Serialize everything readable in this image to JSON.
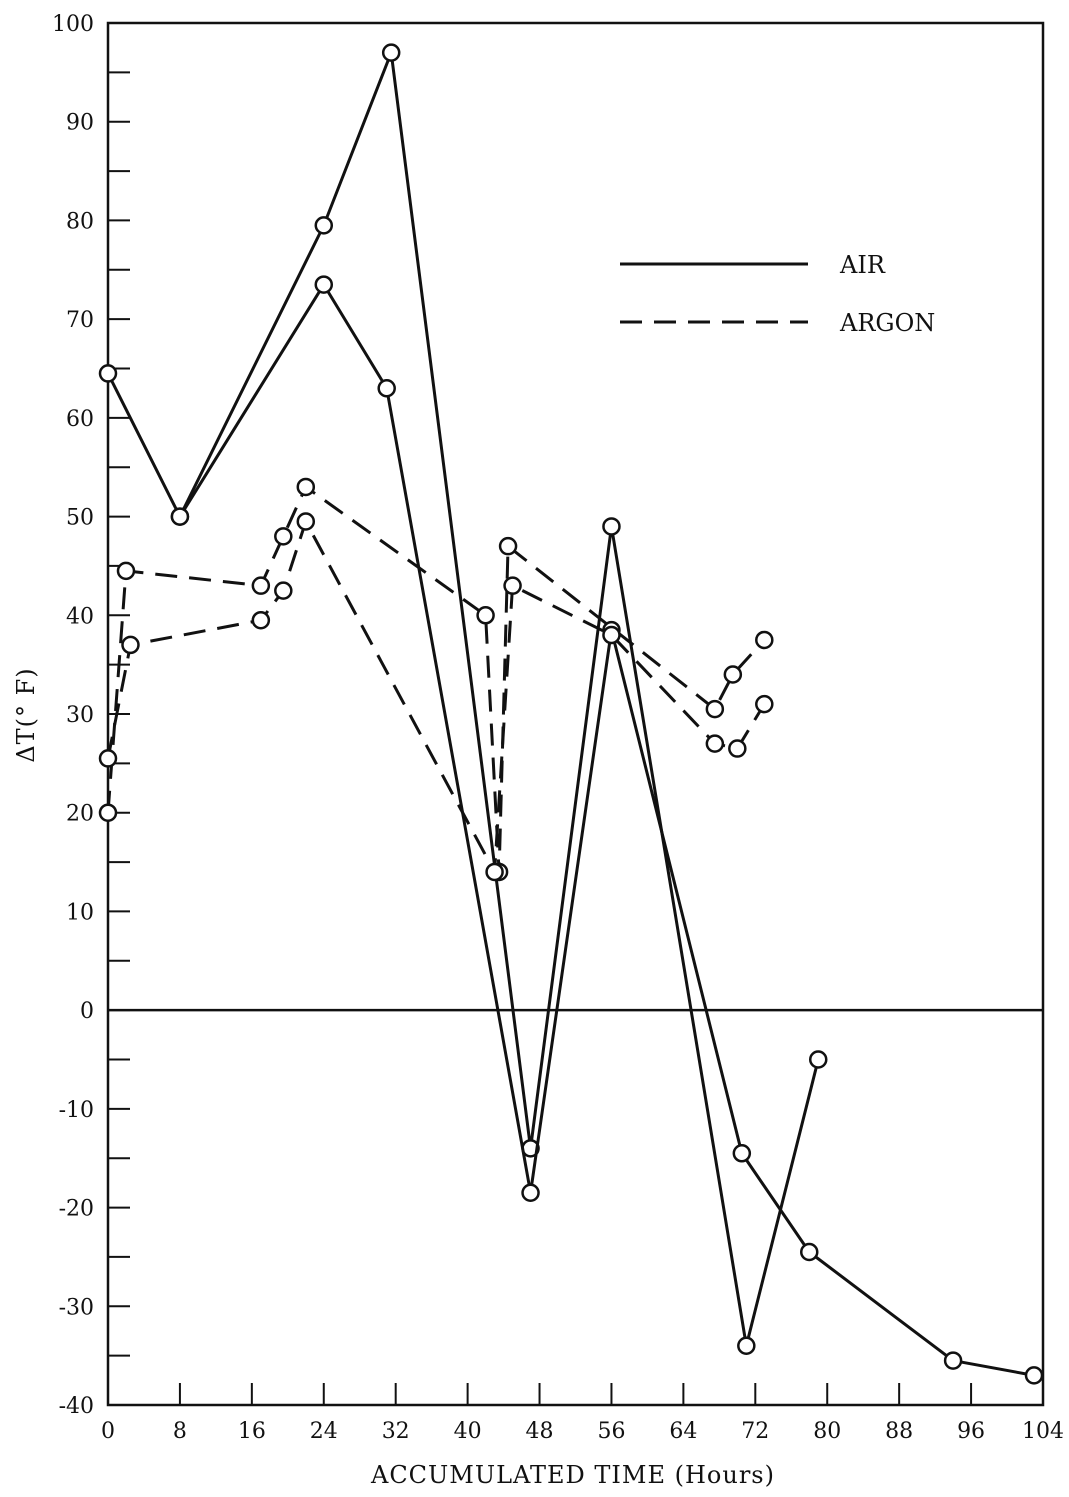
{
  "chart_data": {
    "type": "line",
    "xlabel": "ACCUMULATED TIME (Hours)",
    "ylabel": "ΔT(° F)",
    "xlim": [
      0,
      104
    ],
    "ylim": [
      -40,
      100
    ],
    "x_ticks": [
      "0",
      "8",
      "16",
      "24",
      "32",
      "40",
      "48",
      "56",
      "64",
      "72",
      "80",
      "88",
      "96",
      "104"
    ],
    "y_ticks": [
      "100",
      "90",
      "80",
      "70",
      "60",
      "50",
      "40",
      "30",
      "20",
      "10",
      "0",
      "-10",
      "-20",
      "-30",
      "-40"
    ],
    "legend_position": "top-right",
    "grid": false,
    "legend": [
      {
        "label": "AIR",
        "style": "solid"
      },
      {
        "label": "ARGON",
        "style": "dashed"
      }
    ],
    "series": [
      {
        "style": "solid",
        "points": [
          [
            0,
            64.5
          ],
          [
            8,
            50
          ],
          [
            24,
            79.5
          ],
          [
            31.5,
            97
          ],
          [
            47,
            -14
          ],
          [
            56,
            49
          ],
          [
            71,
            -34
          ],
          [
            79,
            -5
          ]
        ]
      },
      {
        "style": "solid",
        "points": [
          [
            8,
            50
          ],
          [
            24,
            73.5
          ],
          [
            31,
            63
          ],
          [
            47,
            -18.5
          ],
          [
            56,
            38.5
          ],
          [
            70.5,
            -14.5
          ],
          [
            78,
            -24.5
          ],
          [
            94,
            -35.5
          ],
          [
            103,
            -37
          ]
        ]
      },
      {
        "style": "dashed",
        "points": [
          [
            0,
            20
          ],
          [
            2,
            44.5
          ],
          [
            17,
            43
          ],
          [
            19.5,
            48
          ],
          [
            22,
            53
          ],
          [
            42,
            40
          ],
          [
            43.5,
            14
          ],
          [
            44.5,
            47
          ],
          [
            67.5,
            30.5
          ],
          [
            69.5,
            34
          ],
          [
            73,
            37.5
          ]
        ]
      },
      {
        "style": "dashed",
        "points": [
          [
            0,
            25.5
          ],
          [
            2.5,
            37
          ],
          [
            17,
            39.5
          ],
          [
            19.5,
            42.5
          ],
          [
            22,
            49.5
          ],
          [
            43,
            14
          ],
          [
            45,
            43
          ],
          [
            56,
            38
          ],
          [
            67.5,
            27
          ],
          [
            70,
            26.5
          ],
          [
            73,
            31
          ]
        ]
      }
    ]
  }
}
